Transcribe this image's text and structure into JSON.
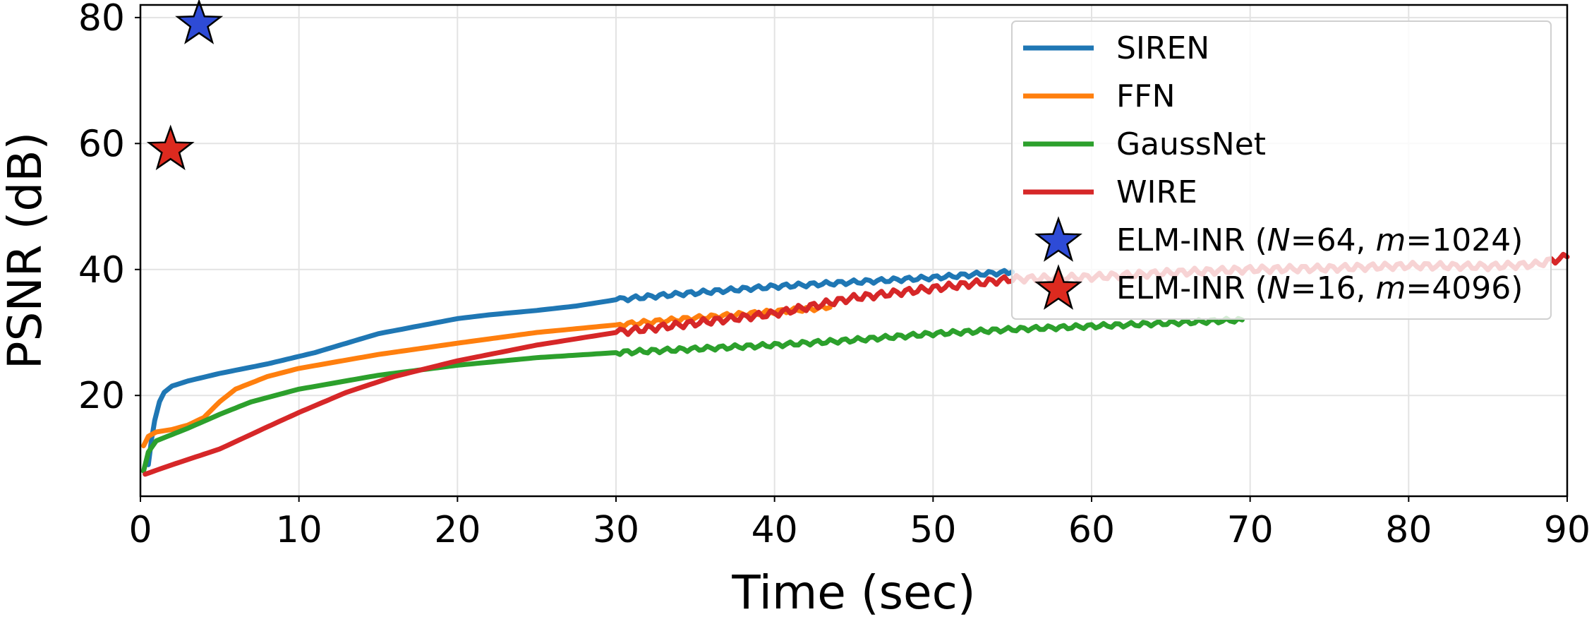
{
  "chart_data": {
    "type": "line",
    "title": "",
    "xlabel": "Time (sec)",
    "ylabel": "PSNR (dB)",
    "xlim": [
      0,
      90
    ],
    "ylim": [
      4,
      82
    ],
    "xticks": [
      0,
      10,
      20,
      30,
      40,
      50,
      60,
      70,
      80,
      90
    ],
    "yticks": [
      20,
      40,
      60,
      80
    ],
    "grid": true,
    "legend_position": "top-right",
    "series": [
      {
        "name": "SIREN",
        "color": "#1f77b4",
        "x": [
          0.5,
          0.7,
          0.9,
          1.2,
          1.5,
          2.0,
          3.0,
          5.0,
          8.0,
          11.0,
          15.0,
          20.0,
          22.0,
          25.0,
          27.5,
          30.0,
          32.5,
          35.0,
          40.0,
          45.0,
          50.0,
          53.0,
          55.0
        ],
        "y": [
          9,
          13,
          16,
          19,
          20.5,
          21.5,
          22.3,
          23.5,
          25.0,
          26.8,
          29.8,
          32.2,
          32.8,
          33.5,
          34.2,
          35.2,
          35.8,
          36.3,
          37.3,
          38.0,
          38.7,
          39.3,
          39.6
        ]
      },
      {
        "name": "FFN",
        "color": "#ff7f0e",
        "x": [
          0.2,
          0.5,
          1.0,
          2.0,
          3.0,
          4.0,
          5.0,
          6.0,
          8.0,
          10.0,
          15.0,
          20.0,
          25.0,
          30.0,
          35.0,
          40.0,
          43.5
        ],
        "y": [
          12,
          13.5,
          14.2,
          14.6,
          15.3,
          16.5,
          19.0,
          21.0,
          23.0,
          24.3,
          26.5,
          28.3,
          30.0,
          31.2,
          32.3,
          33.3,
          34.0
        ]
      },
      {
        "name": "GaussNet",
        "color": "#2ca02c",
        "x": [
          0.2,
          0.5,
          1.0,
          2.0,
          3.0,
          5.0,
          7.0,
          10.0,
          15.0,
          20.0,
          25.0,
          30.0,
          40.0,
          45.0,
          50.0,
          55.0,
          60.0,
          65.0,
          69.5
        ],
        "y": [
          8,
          11,
          12.8,
          13.8,
          14.8,
          17.0,
          19.0,
          21.0,
          23.2,
          24.8,
          26.0,
          26.8,
          28.0,
          28.8,
          29.8,
          30.5,
          31.0,
          31.5,
          32.0
        ]
      },
      {
        "name": "WIRE",
        "color": "#d62728",
        "x": [
          0.3,
          2.0,
          5.0,
          8.0,
          10.0,
          13.0,
          16.0,
          20.0,
          25.0,
          30.0,
          35.0,
          40.0,
          45.0,
          50.0,
          55.0,
          60.0,
          65.0,
          70.0,
          75.0,
          80.0,
          85.0,
          88.0,
          90.0
        ],
        "y": [
          7.5,
          9.0,
          11.5,
          15.0,
          17.3,
          20.5,
          23.0,
          25.5,
          28.0,
          30.0,
          31.5,
          33.0,
          35.5,
          37.0,
          38.5,
          38.8,
          39.5,
          40.0,
          40.2,
          40.6,
          40.5,
          40.8,
          42.0
        ]
      }
    ],
    "markers": [
      {
        "name_prefix": "ELM-INR (",
        "n_label": "N",
        "n_value": "=64, ",
        "m_label": "m",
        "m_value": "=1024)",
        "color": "#2e4bd6",
        "x": 3.7,
        "y": 79
      },
      {
        "name_prefix": "ELM-INR (",
        "n_label": "N",
        "n_value": "=16, ",
        "m_label": "m",
        "m_value": "=4096)",
        "color": "#dc2a1f",
        "x": 1.9,
        "y": 59
      }
    ]
  }
}
